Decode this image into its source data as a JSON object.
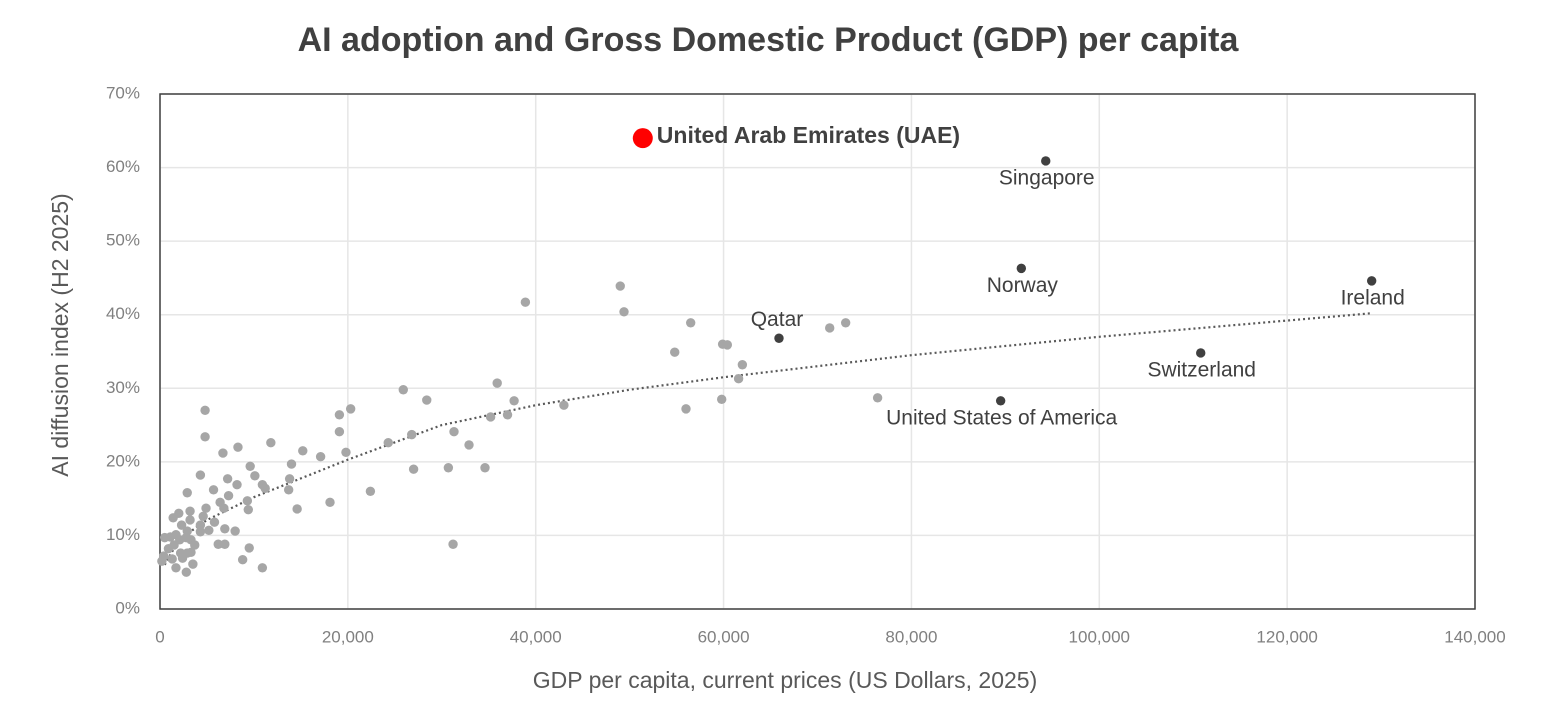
{
  "chart_data": {
    "type": "scatter",
    "title": "AI adoption and Gross Domestic Product (GDP) per capita",
    "x_label": "GDP per capita, current prices (US Dollars, 2025)",
    "y_label": "AI diffusion index (H2 2025)",
    "xlim": [
      0,
      140000
    ],
    "ylim": [
      0,
      70
    ],
    "xticks": [
      0,
      {
        "value": 20000,
        "label": "20,000"
      },
      {
        "value": 40000,
        "label": "40,000"
      },
      {
        "value": 60000,
        "label": "60,000"
      },
      {
        "value": 80000,
        "label": "80,000"
      },
      {
        "value": 100000,
        "label": "100,000"
      },
      {
        "value": 120000,
        "label": "120,000"
      },
      {
        "value": 140000,
        "label": "140,000"
      }
    ],
    "yticks": [
      {
        "value": 0,
        "label": "0%"
      },
      {
        "value": 10,
        "label": "10%"
      },
      {
        "value": 20,
        "label": "20%"
      },
      {
        "value": 30,
        "label": "30%"
      },
      {
        "value": 40,
        "label": "40%"
      },
      {
        "value": 50,
        "label": "50%"
      },
      {
        "value": 60,
        "label": "60%"
      },
      {
        "value": 70,
        "label": "70%"
      }
    ],
    "grid": true,
    "series": [
      {
        "color": "#a6a6a6",
        "x": [
          49000,
          49400,
          38900,
          56500,
          71300,
          73000,
          54800,
          59900,
          60400,
          62000,
          61600,
          56000,
          59800,
          76400,
          43000,
          35900,
          37700,
          35200,
          37000,
          25900,
          28400,
          20300,
          19100,
          19100,
          31300,
          26800,
          32900,
          24300,
          19800,
          17100,
          15200,
          27000,
          30700,
          34600,
          31200,
          18100,
          22400,
          11800,
          8300,
          14000,
          13800,
          13700,
          14600,
          9600,
          10100,
          10900,
          11200,
          4800,
          4800,
          6700,
          4300,
          7200,
          8200,
          7300,
          5700,
          2900,
          6400,
          9300,
          9400,
          6800,
          4900,
          3200,
          2000,
          1400,
          4600,
          5800,
          4300,
          6900,
          8000,
          2900,
          4300,
          6200,
          6900,
          9500,
          8800,
          10900,
          3500,
          2800,
          1700,
          500,
          1100,
          1700,
          2100,
          2800,
          3300,
          900,
          1500,
          2200,
          2900,
          3300,
          400,
          1300,
          2400,
          200,
          3700,
          5200,
          3200,
          2300
        ],
        "values": [
          43.9,
          40.4,
          41.7,
          38.9,
          38.2,
          38.9,
          34.9,
          36.0,
          35.9,
          33.2,
          31.3,
          27.2,
          28.5,
          28.7,
          27.7,
          30.7,
          28.3,
          26.1,
          26.4,
          29.8,
          28.4,
          27.2,
          26.4,
          24.1,
          24.1,
          23.7,
          22.3,
          22.6,
          21.3,
          20.7,
          21.5,
          19.0,
          19.2,
          19.2,
          8.8,
          14.5,
          16.0,
          22.6,
          22.0,
          19.7,
          17.7,
          16.2,
          13.6,
          19.4,
          18.1,
          16.9,
          16.4,
          27.0,
          23.4,
          21.2,
          18.2,
          17.7,
          16.9,
          15.4,
          16.2,
          15.8,
          14.5,
          14.7,
          13.5,
          13.7,
          13.7,
          13.3,
          13.0,
          12.4,
          12.6,
          11.8,
          11.4,
          10.9,
          10.6,
          10.6,
          10.5,
          8.8,
          8.8,
          8.3,
          6.7,
          5.6,
          6.1,
          5.0,
          5.6,
          9.7,
          9.8,
          10.1,
          9.4,
          9.7,
          9.4,
          8.2,
          8.7,
          7.6,
          7.6,
          7.7,
          7.2,
          6.8,
          6.9,
          6.5,
          8.7,
          10.7,
          12.1,
          11.4
        ]
      },
      {
        "color": "#404040",
        "x": [
          94300,
          91700,
          129000,
          110800,
          89500,
          65900
        ],
        "values": [
          60.9,
          46.3,
          44.6,
          34.8,
          28.3,
          36.8
        ],
        "labels": [
          "Singapore",
          "Norway",
          "Ireland",
          "Switzerland",
          "United States of America",
          "Qatar"
        ]
      },
      {
        "color": "#ff0000",
        "x": [
          51400
        ],
        "values": [
          64.0
        ],
        "labels": [
          "United Arab Emirates (UAE)"
        ]
      }
    ],
    "trendline": {
      "color": "#595959",
      "style": "dotted",
      "x": [
        500,
        2000,
        5000,
        10000,
        20000,
        30000,
        40000,
        50000,
        60000,
        80000,
        100000,
        129000
      ],
      "values": [
        6.0,
        9.4,
        12.1,
        15.2,
        20.3,
        25.0,
        27.7,
        29.8,
        31.5,
        34.5,
        37.0,
        40.2
      ]
    }
  }
}
